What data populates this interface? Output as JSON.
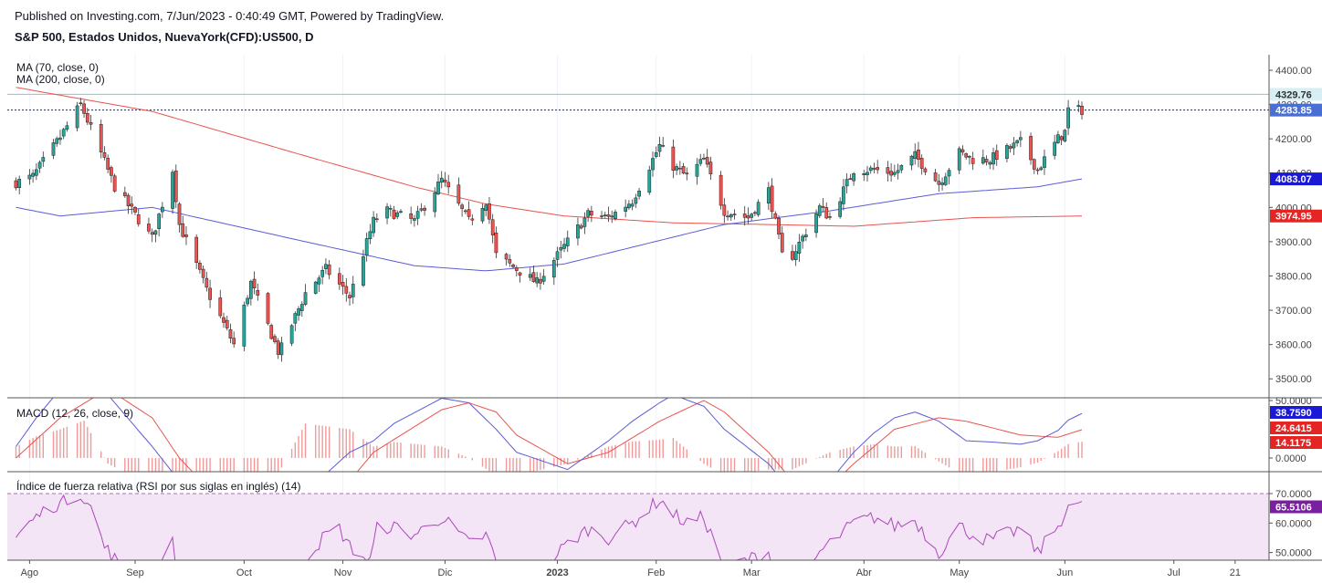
{
  "header": {
    "published": "Published on Investing.com, 7/Jun/2023 - 0:40:49 GMT, Powered by TradingView.",
    "instrument": "S&P 500, Estados Unidos, NuevaYork(CFD):US500, D"
  },
  "colors": {
    "up": "#26a69a",
    "down": "#ef5350",
    "ma70": "#5b5bd6",
    "ma200": "#e8524f",
    "macd_line": "#5b5bd6",
    "signal_line": "#e8524f",
    "rsi": "#ab47bc",
    "rsi_band": "#f3e5f5",
    "price_line": "#4a6fd4",
    "high_line": "#7ec8d8"
  },
  "chart_data": [
    {
      "type": "candlestick",
      "panel": "price",
      "legend": [
        "MA (70, close, 0)",
        "MA (200, close, 0)"
      ],
      "ylim": [
        3450,
        4450
      ],
      "y_ticks": [
        "4400.00",
        "4300.00",
        "4200.00",
        "4100.00",
        "4000.00",
        "3900.00",
        "3800.00",
        "3700.00",
        "3600.00",
        "3500.00"
      ],
      "x_ticks": [
        "Ago",
        "Sep",
        "Oct",
        "Nov",
        "Dic",
        "2023",
        "Feb",
        "Mar",
        "Abr",
        "May",
        "Jun",
        "Jul",
        "21"
      ],
      "close_keypoints": [
        [
          "2022-07-28",
          4072
        ],
        [
          "2022-08-02",
          4090
        ],
        [
          "2022-08-10",
          4205
        ],
        [
          "2022-08-16",
          4300
        ],
        [
          "2022-08-19",
          4230
        ],
        [
          "2022-08-26",
          4060
        ],
        [
          "2022-09-06",
          3910
        ],
        [
          "2022-09-12",
          4110
        ],
        [
          "2022-09-14",
          3950
        ],
        [
          "2022-09-22",
          3760
        ],
        [
          "2022-09-30",
          3600
        ],
        [
          "2022-10-05",
          3780
        ],
        [
          "2022-10-13",
          3580
        ],
        [
          "2022-10-14",
          3590
        ],
        [
          "2022-10-21",
          3750
        ],
        [
          "2022-10-27",
          3820
        ],
        [
          "2022-11-03",
          3740
        ],
        [
          "2022-11-04",
          3770
        ],
        [
          "2022-11-10",
          3960
        ],
        [
          "2022-11-14",
          3990
        ],
        [
          "2022-11-22",
          3960
        ],
        [
          "2022-11-30",
          4080
        ],
        [
          "2022-12-08",
          3960
        ],
        [
          "2022-12-13",
          4020
        ],
        [
          "2022-12-16",
          3860
        ],
        [
          "2022-12-22",
          3820
        ],
        [
          "2022-12-28",
          3780
        ],
        [
          "2023-01-06",
          3900
        ],
        [
          "2023-01-12",
          3980
        ],
        [
          "2023-01-18",
          3970
        ],
        [
          "2023-01-25",
          4020
        ],
        [
          "2023-02-02",
          4180
        ],
        [
          "2023-02-06",
          4120
        ],
        [
          "2023-02-10",
          4090
        ],
        [
          "2023-02-15",
          4140
        ],
        [
          "2023-02-21",
          3990
        ],
        [
          "2023-02-28",
          3970
        ],
        [
          "2023-03-06",
          4050
        ],
        [
          "2023-03-10",
          3860
        ],
        [
          "2023-03-13",
          3860
        ],
        [
          "2023-03-21",
          4000
        ],
        [
          "2023-03-24",
          3970
        ],
        [
          "2023-03-31",
          4110
        ],
        [
          "2023-04-06",
          4110
        ],
        [
          "2023-04-12",
          4100
        ],
        [
          "2023-04-18",
          4150
        ],
        [
          "2023-04-25",
          4070
        ],
        [
          "2023-05-01",
          4160
        ],
        [
          "2023-05-05",
          4140
        ],
        [
          "2023-05-10",
          4140
        ],
        [
          "2023-05-19",
          4190
        ],
        [
          "2023-05-24",
          4110
        ],
        [
          "2023-05-30",
          4200
        ],
        [
          "2023-06-01",
          4220
        ],
        [
          "2023-06-02",
          4285
        ],
        [
          "2023-06-06",
          4283.85
        ]
      ],
      "ma70_keypoints": [
        [
          "2022-07-28",
          4000
        ],
        [
          "2022-08-10",
          3975
        ],
        [
          "2022-09-06",
          4000
        ],
        [
          "2022-10-21",
          3900
        ],
        [
          "2022-11-22",
          3830
        ],
        [
          "2022-12-13",
          3815
        ],
        [
          "2023-01-05",
          3835
        ],
        [
          "2023-02-21",
          3950
        ],
        [
          "2023-03-24",
          3990
        ],
        [
          "2023-04-25",
          4040
        ],
        [
          "2023-05-24",
          4060
        ],
        [
          "2023-06-06",
          4083.07
        ]
      ],
      "ma200_keypoints": [
        [
          "2022-07-28",
          4350
        ],
        [
          "2022-09-06",
          4280
        ],
        [
          "2022-10-21",
          4150
        ],
        [
          "2022-11-22",
          4060
        ],
        [
          "2022-12-13",
          4010
        ],
        [
          "2023-01-05",
          3975
        ],
        [
          "2023-02-06",
          3955
        ],
        [
          "2023-03-06",
          3950
        ],
        [
          "2023-03-31",
          3945
        ],
        [
          "2023-05-05",
          3970
        ],
        [
          "2023-06-06",
          3974.95
        ]
      ],
      "price_labels": [
        {
          "value": 4329.76,
          "label": "4329.76",
          "kind": "high"
        },
        {
          "value": 4283.85,
          "label": "4283.85",
          "kind": "close"
        },
        {
          "value": 4083.07,
          "label": "4083.07",
          "kind": "ma70"
        },
        {
          "value": 3974.95,
          "label": "3974.95",
          "kind": "ma200"
        }
      ]
    },
    {
      "type": "bar+line",
      "panel": "macd",
      "legend": "MACD (12, 26, close, 9)",
      "ylim": [
        -20,
        50
      ],
      "y_ticks": [
        "50.0000",
        "0.0000"
      ],
      "macd_keypoints": [
        [
          "2022-07-28",
          10
        ],
        [
          "2022-08-03",
          35
        ],
        [
          "2022-08-10",
          60
        ],
        [
          "2022-08-17",
          80
        ],
        [
          "2022-08-24",
          55
        ],
        [
          "2022-09-06",
          10
        ],
        [
          "2022-09-14",
          -20
        ],
        [
          "2022-09-30",
          -80
        ],
        [
          "2022-10-13",
          -70
        ],
        [
          "2022-10-21",
          -30
        ],
        [
          "2022-11-03",
          5
        ],
        [
          "2022-11-10",
          15
        ],
        [
          "2022-11-16",
          30
        ],
        [
          "2022-11-30",
          52
        ],
        [
          "2022-12-08",
          48
        ],
        [
          "2022-12-16",
          25
        ],
        [
          "2022-12-22",
          5
        ],
        [
          "2023-01-06",
          -10
        ],
        [
          "2023-01-18",
          15
        ],
        [
          "2023-01-25",
          32
        ],
        [
          "2023-02-02",
          48
        ],
        [
          "2023-02-06",
          55
        ],
        [
          "2023-02-15",
          45
        ],
        [
          "2023-02-21",
          25
        ],
        [
          "2023-03-06",
          -5
        ],
        [
          "2023-03-13",
          -30
        ],
        [
          "2023-03-24",
          -20
        ],
        [
          "2023-03-31",
          5
        ],
        [
          "2023-04-06",
          22
        ],
        [
          "2023-04-12",
          35
        ],
        [
          "2023-04-18",
          40
        ],
        [
          "2023-04-25",
          32
        ],
        [
          "2023-05-03",
          15
        ],
        [
          "2023-05-10",
          14
        ],
        [
          "2023-05-19",
          12
        ],
        [
          "2023-05-24",
          15
        ],
        [
          "2023-05-30",
          24
        ],
        [
          "2023-06-02",
          33
        ],
        [
          "2023-06-06",
          38.759
        ]
      ],
      "signal_keypoints": [
        [
          "2022-07-28",
          0
        ],
        [
          "2022-08-10",
          35
        ],
        [
          "2022-08-24",
          60
        ],
        [
          "2022-09-06",
          35
        ],
        [
          "2022-09-14",
          0
        ],
        [
          "2022-09-30",
          -50
        ],
        [
          "2022-10-21",
          -60
        ],
        [
          "2022-11-03",
          -20
        ],
        [
          "2022-11-10",
          5
        ],
        [
          "2022-11-30",
          42
        ],
        [
          "2022-12-08",
          48
        ],
        [
          "2022-12-16",
          40
        ],
        [
          "2022-12-22",
          20
        ],
        [
          "2023-01-06",
          -5
        ],
        [
          "2023-01-18",
          5
        ],
        [
          "2023-02-02",
          32
        ],
        [
          "2023-02-15",
          50
        ],
        [
          "2023-02-21",
          40
        ],
        [
          "2023-03-06",
          5
        ],
        [
          "2023-03-13",
          -20
        ],
        [
          "2023-03-24",
          -25
        ],
        [
          "2023-03-31",
          -5
        ],
        [
          "2023-04-12",
          25
        ],
        [
          "2023-04-25",
          35
        ],
        [
          "2023-05-03",
          32
        ],
        [
          "2023-05-19",
          20
        ],
        [
          "2023-05-30",
          18
        ],
        [
          "2023-06-06",
          24.6415
        ]
      ],
      "values_labels": [
        {
          "value": 38.759,
          "label": "38.7590",
          "kind": "macd"
        },
        {
          "value": 24.6415,
          "label": "24.6415",
          "kind": "signal"
        },
        {
          "value": 14.1175,
          "label": "14.1175",
          "kind": "histogram"
        }
      ]
    },
    {
      "type": "line",
      "panel": "rsi",
      "legend": "Índice de fuerza relativa (RSI por sus siglas en inglés) (14)",
      "ylim": [
        45,
        73
      ],
      "band": [
        30,
        70
      ],
      "y_ticks": [
        "70.0000",
        "60.0000",
        "50.0000"
      ],
      "rsi_keypoints": [
        [
          "2022-07-28",
          55
        ],
        [
          "2022-08-01",
          60
        ],
        [
          "2022-08-04",
          63
        ],
        [
          "2022-08-08",
          66
        ],
        [
          "2022-08-11",
          67
        ],
        [
          "2022-08-15",
          70
        ],
        [
          "2022-08-17",
          69
        ],
        [
          "2022-08-19",
          65
        ],
        [
          "2022-08-23",
          52
        ],
        [
          "2022-08-26",
          48
        ],
        [
          "2022-08-30",
          38
        ],
        [
          "2022-09-06",
          42
        ],
        [
          "2022-09-12",
          53
        ],
        [
          "2022-09-14",
          40
        ],
        [
          "2022-09-22",
          33
        ],
        [
          "2022-10-04",
          40
        ],
        [
          "2022-10-13",
          35
        ],
        [
          "2022-10-21",
          48
        ],
        [
          "2022-10-27",
          56
        ],
        [
          "2022-10-31",
          58
        ],
        [
          "2022-11-03",
          52
        ],
        [
          "2022-11-09",
          47
        ],
        [
          "2022-11-11",
          58
        ],
        [
          "2022-11-15",
          59
        ],
        [
          "2022-11-22",
          56
        ],
        [
          "2022-11-30",
          62
        ],
        [
          "2022-12-08",
          53
        ],
        [
          "2022-12-13",
          56
        ],
        [
          "2022-12-16",
          47
        ],
        [
          "2022-12-22",
          45
        ],
        [
          "2022-12-28",
          43
        ],
        [
          "2023-01-06",
          53
        ],
        [
          "2023-01-12",
          58
        ],
        [
          "2023-01-18",
          55
        ],
        [
          "2023-01-25",
          60
        ],
        [
          "2023-02-02",
          68
        ],
        [
          "2023-02-06",
          63
        ],
        [
          "2023-02-10",
          60
        ],
        [
          "2023-02-15",
          62
        ],
        [
          "2023-02-21",
          45
        ],
        [
          "2023-03-06",
          50
        ],
        [
          "2023-03-10",
          38
        ],
        [
          "2023-03-17",
          43
        ],
        [
          "2023-03-21",
          50
        ],
        [
          "2023-03-31",
          60
        ],
        [
          "2023-04-06",
          62
        ],
        [
          "2023-04-12",
          59
        ],
        [
          "2023-04-18",
          61
        ],
        [
          "2023-04-25",
          50
        ],
        [
          "2023-05-01",
          59
        ],
        [
          "2023-05-05",
          56
        ],
        [
          "2023-05-10",
          54
        ],
        [
          "2023-05-19",
          58
        ],
        [
          "2023-05-24",
          50
        ],
        [
          "2023-05-30",
          59
        ],
        [
          "2023-06-02",
          66
        ],
        [
          "2023-06-06",
          65.5106
        ]
      ],
      "values_labels": [
        {
          "value": 65.5106,
          "label": "65.5106",
          "kind": "rsi"
        }
      ]
    }
  ]
}
